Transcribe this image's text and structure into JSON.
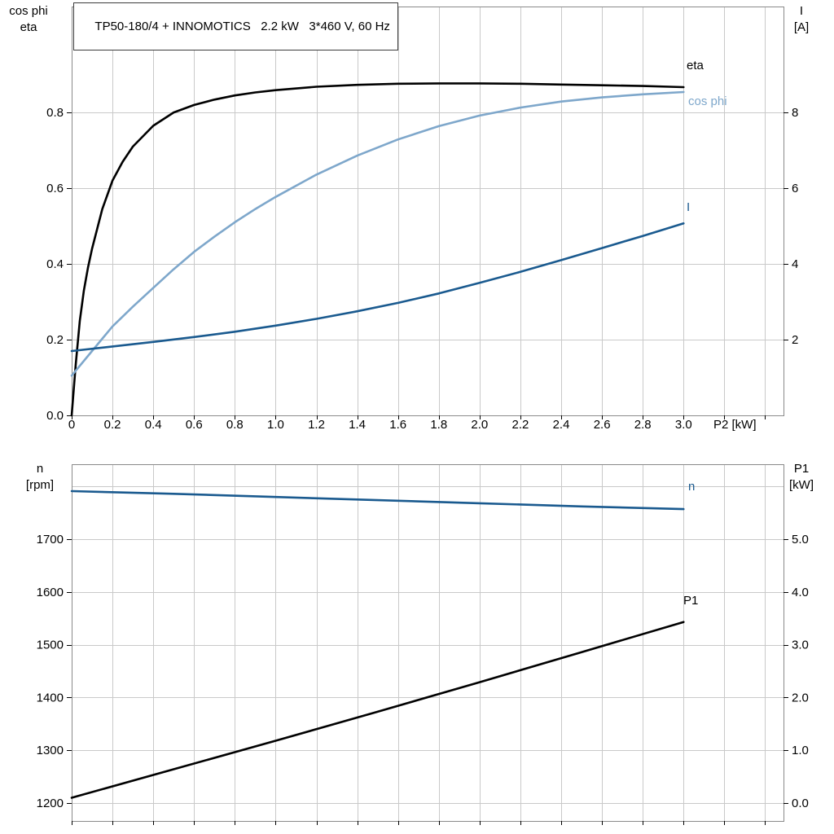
{
  "title_box": {
    "text": "TP50-180/4 + INNOMOTICS   2.2 kW   3*460 V, 60 Hz"
  },
  "axis_labels": {
    "top_left_line1": "cos phi",
    "top_left_line2": "eta",
    "top_right_line1": "I",
    "top_right_line2": "[A]",
    "x_axis": "P2 [kW]",
    "bottom_left_line1": "n",
    "bottom_left_line2": "[rpm]",
    "bottom_right_line1": "P1",
    "bottom_right_line2": "[kW]"
  },
  "curve_labels": {
    "eta": "eta",
    "cos_phi": "cos phi",
    "current": "I",
    "speed": "n",
    "input_power": "P1"
  },
  "colors": {
    "eta": "#000000",
    "cos_phi": "#7ea7cb",
    "current": "#1a5a8f",
    "speed": "#1a5a8f",
    "input_power": "#000000",
    "grid": "#c9c9c9",
    "frame": "#8a8a8a",
    "tick": "#000000",
    "text": "#000000"
  },
  "chart_data": [
    {
      "type": "line",
      "name": "efficiency-current-chart",
      "title": "TP50-180/4 + INNOMOTICS 2.2 kW 3*460 V, 60 Hz",
      "xlabel": "P2 [kW]",
      "ylabel_left": "cos phi / eta",
      "ylabel_right": "I [A]",
      "xlim": [
        0,
        3.49
      ],
      "ylim_left": [
        0,
        1.08
      ],
      "ylim_right": [
        0,
        10.8
      ],
      "grid": true,
      "legend_position": "right-inline",
      "x_ticks": [
        0,
        0.2,
        0.4,
        0.6,
        0.8,
        1.0,
        1.2,
        1.4,
        1.6,
        1.8,
        2.0,
        2.2,
        2.4,
        2.6,
        2.8,
        3.0
      ],
      "x_tick_labels": [
        "0",
        "0.2",
        "0.4",
        "0.6",
        "0.8",
        "1.0",
        "1.2",
        "1.4",
        "1.6",
        "1.8",
        "2.0",
        "2.2",
        "2.4",
        "2.6",
        "2.8",
        "3.0"
      ],
      "y_ticks_left": [
        0.0,
        0.2,
        0.4,
        0.6,
        0.8
      ],
      "y_tick_labels_left": [
        "0.0",
        "0.2",
        "0.4",
        "0.6",
        "0.8"
      ],
      "y_grid": [
        0.2,
        0.4,
        0.6,
        0.8
      ],
      "y_ticks_right": [
        2,
        4,
        6,
        8
      ],
      "y_tick_labels_right": [
        "2",
        "4",
        "6",
        "8"
      ],
      "series": [
        {
          "name": "eta",
          "axis": "left",
          "color": "#000000",
          "x": [
            0,
            0.02,
            0.04,
            0.06,
            0.08,
            0.1,
            0.15,
            0.2,
            0.25,
            0.3,
            0.4,
            0.5,
            0.6,
            0.7,
            0.8,
            0.9,
            1.0,
            1.2,
            1.4,
            1.6,
            1.8,
            2.0,
            2.2,
            2.4,
            2.6,
            2.8,
            3.0
          ],
          "y": [
            0,
            0.135,
            0.25,
            0.33,
            0.39,
            0.44,
            0.545,
            0.62,
            0.67,
            0.71,
            0.765,
            0.8,
            0.82,
            0.834,
            0.845,
            0.853,
            0.859,
            0.868,
            0.873,
            0.876,
            0.877,
            0.877,
            0.876,
            0.874,
            0.872,
            0.87,
            0.867
          ]
        },
        {
          "name": "cos phi",
          "axis": "left",
          "color": "#7ea7cb",
          "x": [
            0,
            0.1,
            0.2,
            0.3,
            0.4,
            0.5,
            0.6,
            0.7,
            0.8,
            0.9,
            1.0,
            1.2,
            1.4,
            1.6,
            1.8,
            2.0,
            2.2,
            2.4,
            2.6,
            2.8,
            3.0
          ],
          "y": [
            0.105,
            0.17,
            0.235,
            0.287,
            0.337,
            0.386,
            0.432,
            0.472,
            0.51,
            0.545,
            0.577,
            0.636,
            0.686,
            0.729,
            0.764,
            0.792,
            0.813,
            0.829,
            0.84,
            0.848,
            0.854
          ]
        },
        {
          "name": "I",
          "axis": "right",
          "color": "#1a5a8f",
          "x": [
            0,
            0.2,
            0.4,
            0.6,
            0.8,
            1.0,
            1.2,
            1.4,
            1.6,
            1.8,
            2.0,
            2.2,
            2.4,
            2.6,
            2.8,
            3.0
          ],
          "y": [
            1.7,
            1.82,
            1.94,
            2.07,
            2.21,
            2.37,
            2.55,
            2.75,
            2.97,
            3.22,
            3.5,
            3.79,
            4.1,
            4.42,
            4.74,
            5.07
          ]
        }
      ]
    },
    {
      "type": "line",
      "name": "speed-input-power-chart",
      "title": "",
      "xlabel": "P2 [kW]",
      "ylabel_left": "n [rpm]",
      "ylabel_right": "P1 [kW]",
      "xlim": [
        0,
        3.49
      ],
      "ylim_left": [
        1166,
        1842
      ],
      "ylim_right": [
        -0.34,
        6.42
      ],
      "grid": true,
      "x_ticks": [
        0,
        0.2,
        0.4,
        0.6,
        0.8,
        1.0,
        1.2,
        1.4,
        1.6,
        1.8,
        2.0,
        2.2,
        2.4,
        2.6,
        2.8,
        3.0
      ],
      "x_tick_labels": null,
      "y_ticks_left": [
        1200,
        1300,
        1400,
        1500,
        1600,
        1700
      ],
      "y_tick_labels_left": [
        "1200",
        "1300",
        "1400",
        "1500",
        "1600",
        "1700"
      ],
      "y_grid": [
        1200,
        1300,
        1400,
        1500,
        1600,
        1700,
        1800
      ],
      "y_ticks_right": [
        0.0,
        1.0,
        2.0,
        3.0,
        4.0,
        5.0
      ],
      "y_tick_labels_right": [
        "0.0",
        "1.0",
        "2.0",
        "3.0",
        "4.0",
        "5.0"
      ],
      "series": [
        {
          "name": "n",
          "axis": "left",
          "color": "#1a5a8f",
          "x": [
            0,
            0.5,
            1.0,
            1.5,
            2.0,
            2.5,
            3.0
          ],
          "y": [
            1791,
            1786,
            1780,
            1774,
            1768,
            1762,
            1757
          ]
        },
        {
          "name": "P1",
          "axis": "right",
          "color": "#000000",
          "x": [
            0,
            0.5,
            1.0,
            1.5,
            2.0,
            2.5,
            3.0
          ],
          "y": [
            0.1,
            0.64,
            1.18,
            1.73,
            2.29,
            2.86,
            3.43
          ]
        }
      ]
    }
  ]
}
